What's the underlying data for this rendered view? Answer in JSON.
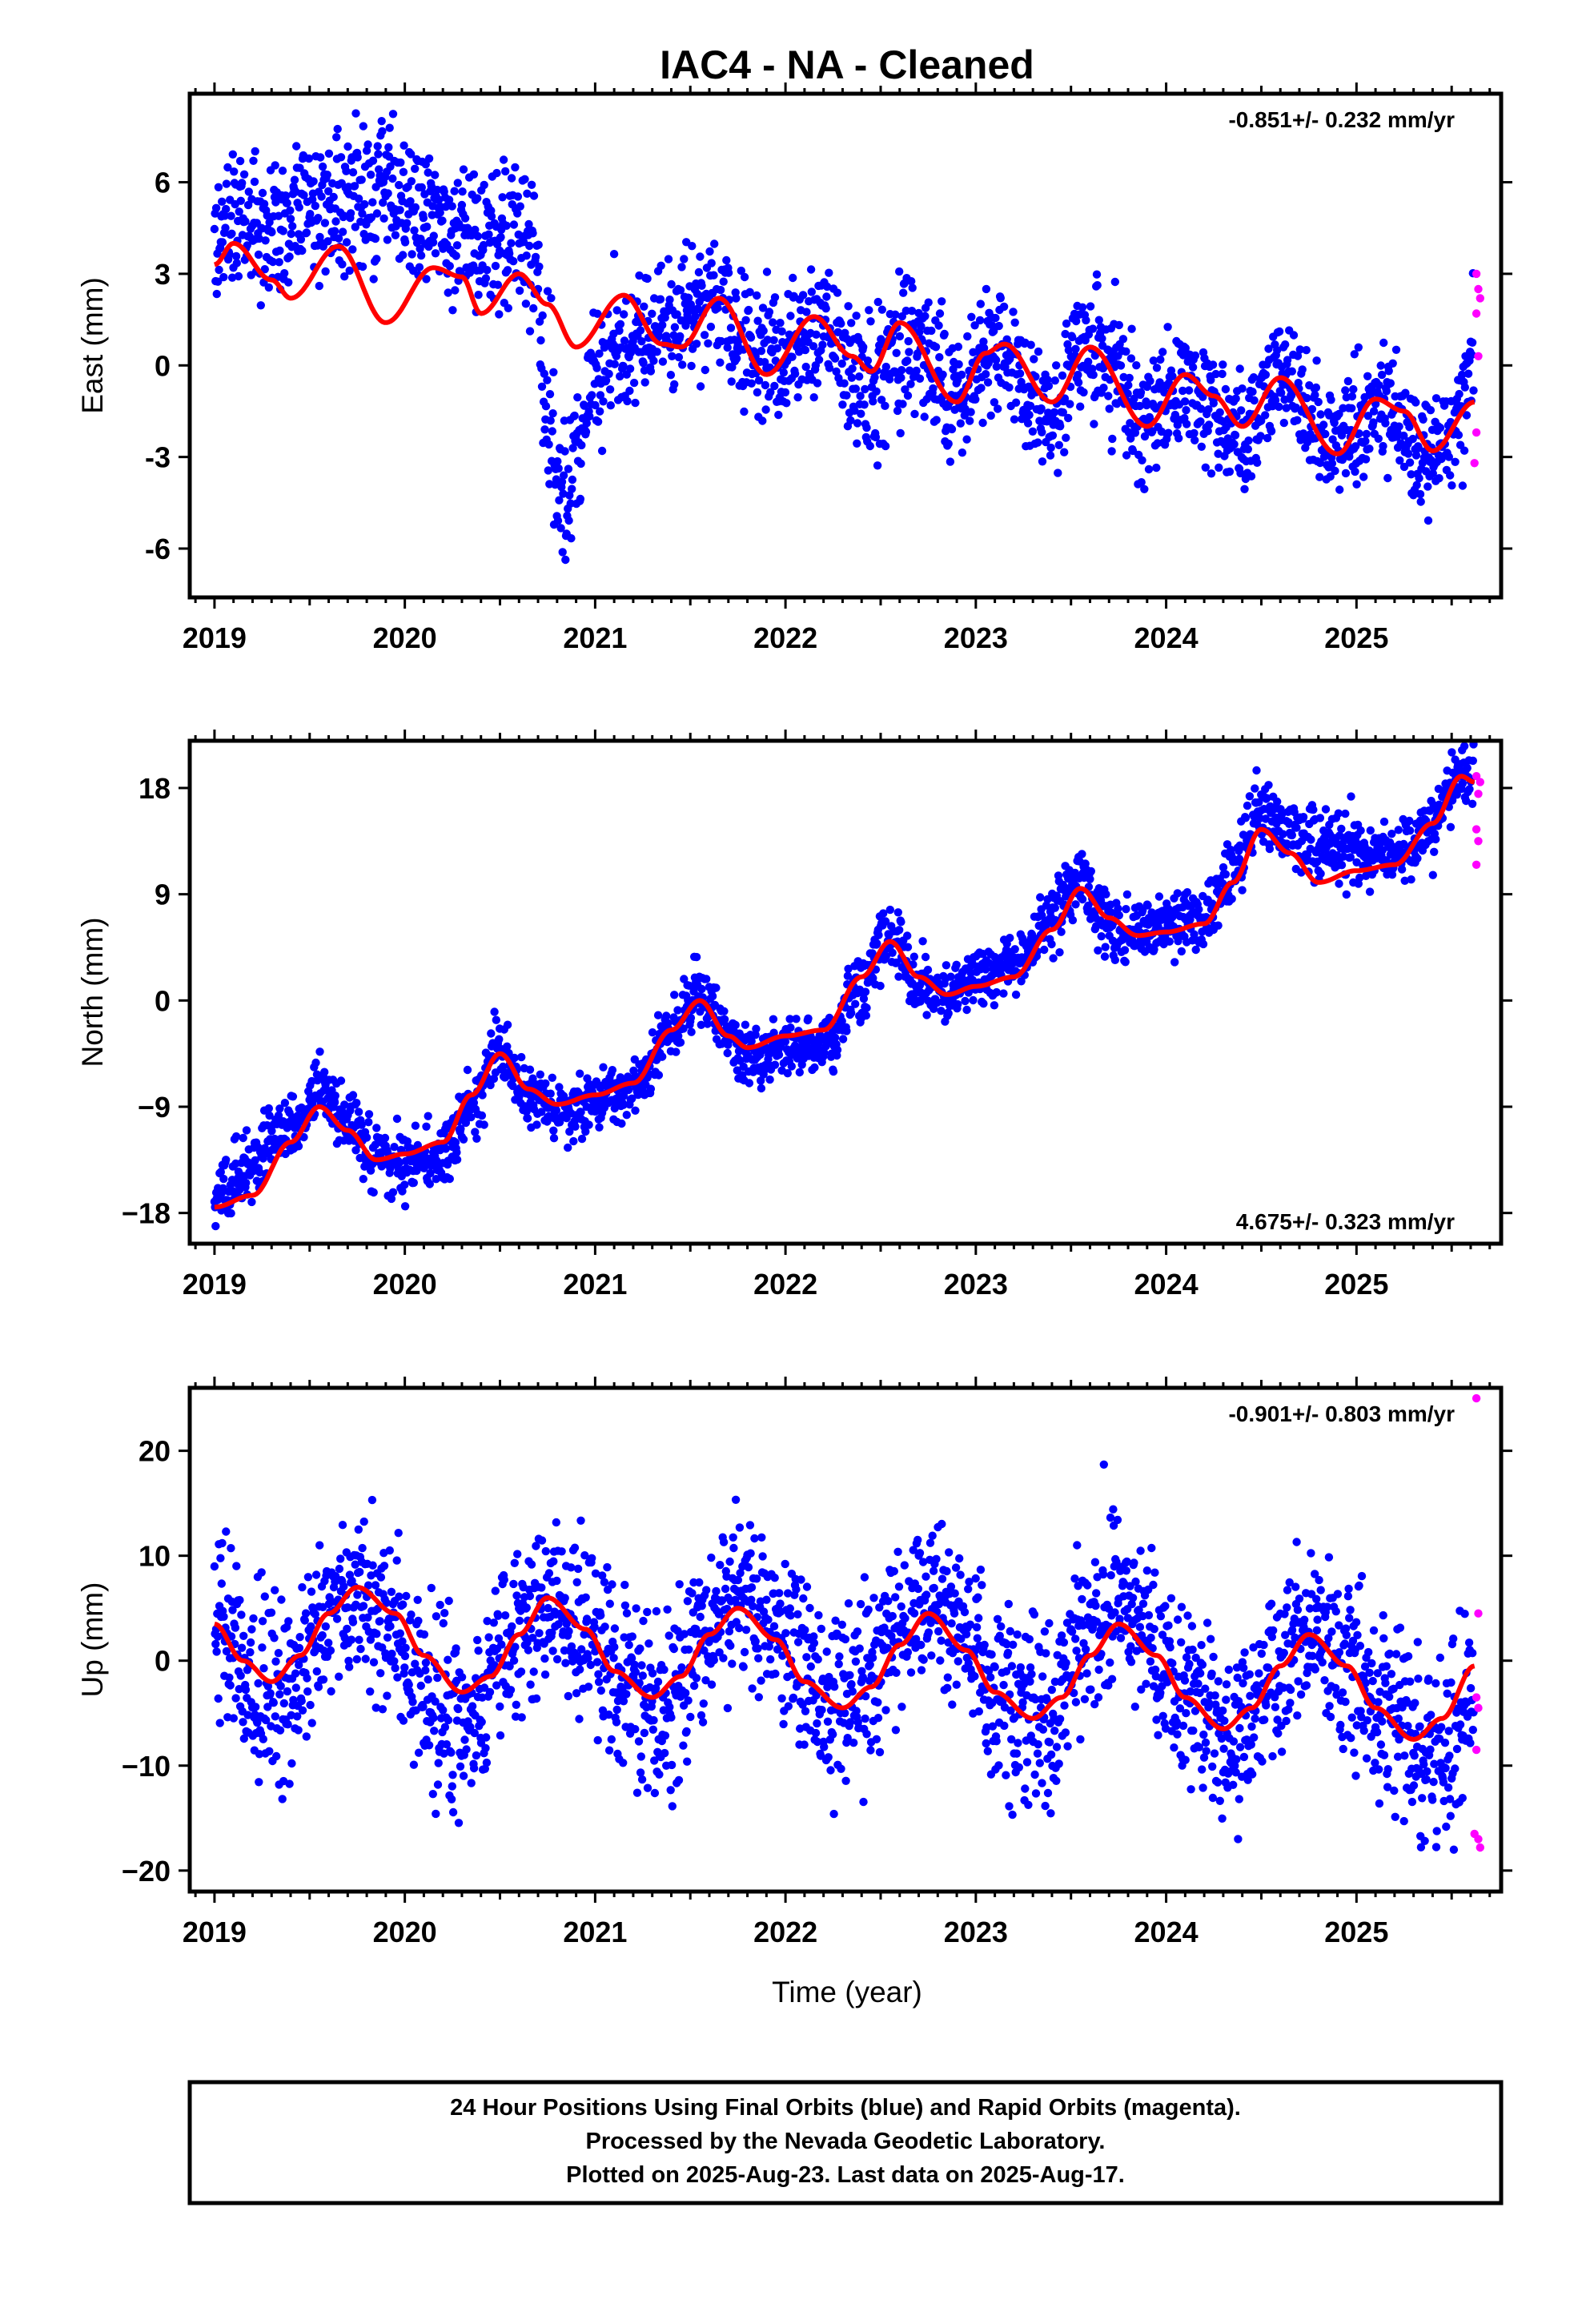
{
  "title": "IAC4  - NA - Cleaned",
  "colors": {
    "final": "#0000ff",
    "rapid": "#ff00ff",
    "model": "#ff0000",
    "frame": "#000000"
  },
  "xlabel": "Time (year)",
  "footer": {
    "line1": "24 Hour Positions Using Final Orbits (blue) and Rapid Orbits (magenta).",
    "line2": "Processed by the Nevada Geodetic Laboratory.",
    "line3": "Plotted on 2025-Aug-23. Last data on 2025-Aug-17."
  },
  "chart_data": [
    {
      "type": "scatter",
      "ylabel": "East (mm)",
      "xlim": [
        2018.87,
        2025.76
      ],
      "ylim": [
        -7.6,
        8.9
      ],
      "xticks": [
        "2019",
        "2020",
        "2021",
        "2022",
        "2023",
        "2024",
        "2025"
      ],
      "yticks": [
        "6",
        "3",
        "0",
        "-3",
        "-6"
      ],
      "rate": "-0.851+/- 0.232 mm/yr",
      "rate_position": "top-right",
      "model_anchors": [
        [
          2019.0,
          3.3
        ],
        [
          2019.1,
          4.0
        ],
        [
          2019.3,
          2.8
        ],
        [
          2019.4,
          2.2
        ],
        [
          2019.65,
          3.9
        ],
        [
          2019.9,
          1.4
        ],
        [
          2020.15,
          3.2
        ],
        [
          2020.3,
          2.9
        ],
        [
          2020.4,
          1.7
        ],
        [
          2020.6,
          3.0
        ],
        [
          2020.75,
          2.0
        ],
        [
          2020.9,
          0.6
        ],
        [
          2021.15,
          2.3
        ],
        [
          2021.35,
          0.7
        ],
        [
          2021.45,
          0.6
        ],
        [
          2021.65,
          2.2
        ],
        [
          2021.9,
          -0.3
        ],
        [
          2022.15,
          1.6
        ],
        [
          2022.35,
          0.3
        ],
        [
          2022.45,
          -0.2
        ],
        [
          2022.6,
          1.4
        ],
        [
          2022.9,
          -1.2
        ],
        [
          2023.05,
          0.4
        ],
        [
          2023.15,
          0.7
        ],
        [
          2023.4,
          -1.2
        ],
        [
          2023.6,
          0.6
        ],
        [
          2023.9,
          -2.0
        ],
        [
          2024.1,
          -0.3
        ],
        [
          2024.25,
          -1.0
        ],
        [
          2024.4,
          -2.0
        ],
        [
          2024.6,
          -0.4
        ],
        [
          2024.9,
          -2.9
        ],
        [
          2025.1,
          -1.1
        ],
        [
          2025.25,
          -1.5
        ],
        [
          2025.4,
          -2.8
        ],
        [
          2025.62,
          -1.2
        ]
      ],
      "envelope_anchors": [
        [
          2019.0,
          4.6,
          1.2
        ],
        [
          2019.5,
          5.0,
          1.2
        ],
        [
          2019.9,
          5.6,
          1.4
        ],
        [
          2020.3,
          4.2,
          1.2
        ],
        [
          2020.6,
          4.0,
          1.2
        ],
        [
          2020.68,
          3.5,
          1.2
        ],
        [
          2020.75,
          -2.0,
          1.8
        ],
        [
          2020.85,
          -4.2,
          1.5
        ],
        [
          2020.9,
          -2.0,
          1.4
        ],
        [
          2021.0,
          -0.5,
          1.1
        ],
        [
          2021.3,
          1.0,
          1.0
        ],
        [
          2021.6,
          2.2,
          1.1
        ],
        [
          2021.9,
          0.2,
          1.2
        ],
        [
          2022.2,
          1.0,
          1.1
        ],
        [
          2022.45,
          -0.6,
          1.2
        ],
        [
          2022.6,
          0.6,
          1.2
        ],
        [
          2022.9,
          -0.8,
          1.2
        ],
        [
          2023.1,
          0.5,
          1.0
        ],
        [
          2023.4,
          -1.5,
          1.1
        ],
        [
          2023.6,
          0.8,
          1.2
        ],
        [
          2023.9,
          -1.8,
          1.1
        ],
        [
          2024.1,
          -0.8,
          1.0
        ],
        [
          2024.4,
          -2.2,
          1.0
        ],
        [
          2024.6,
          -0.6,
          1.0
        ],
        [
          2024.9,
          -2.5,
          1.0
        ],
        [
          2025.1,
          -1.4,
          1.0
        ],
        [
          2025.4,
          -2.8,
          0.9
        ],
        [
          2025.55,
          -1.6,
          1.0
        ],
        [
          2025.62,
          0.5,
          1.2
        ]
      ],
      "rapid_points": [
        [
          2025.63,
          3.0
        ],
        [
          2025.64,
          2.5
        ],
        [
          2025.63,
          1.7
        ],
        [
          2025.64,
          0.3
        ],
        [
          2025.63,
          -2.2
        ],
        [
          2025.62,
          -3.2
        ],
        [
          2025.65,
          2.2
        ]
      ],
      "n_points": 2200,
      "seed": 101
    },
    {
      "type": "scatter",
      "ylabel": "North (mm)",
      "xlim": [
        2018.87,
        2025.76
      ],
      "ylim": [
        -20.6,
        22.0
      ],
      "xticks": [
        "2019",
        "2020",
        "2021",
        "2022",
        "2023",
        "2024",
        "2025"
      ],
      "yticks": [
        "18",
        "9",
        "0",
        "−9",
        "−18"
      ],
      "rate": "4.675+/- 0.323 mm/yr",
      "rate_position": "bottom-right",
      "model_anchors": [
        [
          2019.0,
          -17.5
        ],
        [
          2019.2,
          -16.5
        ],
        [
          2019.4,
          -12.0
        ],
        [
          2019.55,
          -9.0
        ],
        [
          2019.7,
          -11.0
        ],
        [
          2019.85,
          -13.5
        ],
        [
          2020.0,
          -13.0
        ],
        [
          2020.2,
          -12.0
        ],
        [
          2020.35,
          -8.0
        ],
        [
          2020.5,
          -4.5
        ],
        [
          2020.65,
          -7.5
        ],
        [
          2020.8,
          -8.8
        ],
        [
          2021.0,
          -8.0
        ],
        [
          2021.2,
          -7.0
        ],
        [
          2021.4,
          -2.5
        ],
        [
          2021.55,
          0.0
        ],
        [
          2021.7,
          -3.0
        ],
        [
          2021.8,
          -4.0
        ],
        [
          2022.0,
          -3.0
        ],
        [
          2022.2,
          -2.5
        ],
        [
          2022.4,
          2.0
        ],
        [
          2022.55,
          5.0
        ],
        [
          2022.7,
          2.0
        ],
        [
          2022.85,
          0.5
        ],
        [
          2023.0,
          1.2
        ],
        [
          2023.2,
          2.0
        ],
        [
          2023.4,
          6.0
        ],
        [
          2023.55,
          9.5
        ],
        [
          2023.7,
          7.0
        ],
        [
          2023.85,
          5.5
        ],
        [
          2024.0,
          5.8
        ],
        [
          2024.2,
          6.5
        ],
        [
          2024.35,
          10.0
        ],
        [
          2024.5,
          14.5
        ],
        [
          2024.65,
          12.5
        ],
        [
          2024.8,
          10.0
        ],
        [
          2025.0,
          11.0
        ],
        [
          2025.2,
          11.5
        ],
        [
          2025.4,
          15.0
        ],
        [
          2025.55,
          19.0
        ],
        [
          2025.62,
          18.5
        ]
      ],
      "envelope_anchors": [
        [
          2019.0,
          -16.5,
          1.5
        ],
        [
          2019.4,
          -11.0,
          1.5
        ],
        [
          2019.55,
          -7.5,
          1.5
        ],
        [
          2019.7,
          -10.0,
          1.5
        ],
        [
          2019.85,
          -13.0,
          1.5
        ],
        [
          2020.0,
          -14.0,
          1.5
        ],
        [
          2020.2,
          -13.0,
          1.5
        ],
        [
          2020.35,
          -8.5,
          1.5
        ],
        [
          2020.5,
          -4.0,
          1.5
        ],
        [
          2020.65,
          -8.0,
          1.5
        ],
        [
          2020.8,
          -9.5,
          1.3
        ],
        [
          2021.0,
          -8.5,
          1.2
        ],
        [
          2021.2,
          -7.5,
          1.2
        ],
        [
          2021.4,
          -2.5,
          1.3
        ],
        [
          2021.55,
          1.0,
          1.5
        ],
        [
          2021.7,
          -3.0,
          1.5
        ],
        [
          2021.8,
          -5.0,
          1.3
        ],
        [
          2022.0,
          -4.0,
          1.2
        ],
        [
          2022.2,
          -4.0,
          1.2
        ],
        [
          2022.4,
          1.0,
          1.5
        ],
        [
          2022.55,
          5.5,
          1.5
        ],
        [
          2022.7,
          1.5,
          1.5
        ],
        [
          2022.85,
          0.5,
          1.3
        ],
        [
          2023.0,
          2.0,
          1.2
        ],
        [
          2023.2,
          3.0,
          1.2
        ],
        [
          2023.4,
          7.0,
          1.5
        ],
        [
          2023.55,
          10.0,
          1.5
        ],
        [
          2023.7,
          6.5,
          1.5
        ],
        [
          2023.85,
          5.5,
          1.3
        ],
        [
          2024.0,
          6.5,
          1.3
        ],
        [
          2024.2,
          7.0,
          1.3
        ],
        [
          2024.35,
          11.0,
          1.5
        ],
        [
          2024.5,
          16.0,
          1.5
        ],
        [
          2024.65,
          14.5,
          1.5
        ],
        [
          2024.8,
          13.0,
          1.5
        ],
        [
          2025.0,
          12.5,
          1.3
        ],
        [
          2025.2,
          12.5,
          1.3
        ],
        [
          2025.4,
          15.0,
          1.5
        ],
        [
          2025.55,
          19.0,
          1.5
        ],
        [
          2025.62,
          19.5,
          1.5
        ]
      ],
      "rapid_points": [
        [
          2025.63,
          19.0
        ],
        [
          2025.64,
          17.5
        ],
        [
          2025.63,
          14.5
        ],
        [
          2025.64,
          13.5
        ],
        [
          2025.63,
          11.5
        ],
        [
          2025.65,
          18.5
        ]
      ],
      "n_points": 2200,
      "seed": 202
    },
    {
      "type": "scatter",
      "ylabel": "Up (mm)",
      "xlim": [
        2018.87,
        2025.76
      ],
      "ylim": [
        -22.0,
        26.0
      ],
      "xticks": [
        "2019",
        "2020",
        "2021",
        "2022",
        "2023",
        "2024",
        "2025"
      ],
      "yticks": [
        "20",
        "10",
        "0",
        "−10",
        "−20"
      ],
      "rate": "-0.901+/- 0.803 mm/yr",
      "rate_position": "top-right",
      "model_anchors": [
        [
          2019.0,
          3.5
        ],
        [
          2019.15,
          0.0
        ],
        [
          2019.3,
          -2.0
        ],
        [
          2019.45,
          0.5
        ],
        [
          2019.6,
          4.5
        ],
        [
          2019.75,
          7.0
        ],
        [
          2019.95,
          4.5
        ],
        [
          2020.1,
          0.5
        ],
        [
          2020.3,
          -3.0
        ],
        [
          2020.45,
          -1.5
        ],
        [
          2020.6,
          2.5
        ],
        [
          2020.75,
          6.0
        ],
        [
          2020.95,
          3.0
        ],
        [
          2021.1,
          -1.0
        ],
        [
          2021.3,
          -3.5
        ],
        [
          2021.45,
          -1.5
        ],
        [
          2021.6,
          2.5
        ],
        [
          2021.75,
          5.0
        ],
        [
          2021.95,
          2.0
        ],
        [
          2022.1,
          -2.0
        ],
        [
          2022.3,
          -4.5
        ],
        [
          2022.45,
          -2.5
        ],
        [
          2022.6,
          1.5
        ],
        [
          2022.75,
          4.5
        ],
        [
          2022.95,
          1.0
        ],
        [
          2023.1,
          -3.0
        ],
        [
          2023.3,
          -5.5
        ],
        [
          2023.45,
          -3.5
        ],
        [
          2023.6,
          0.5
        ],
        [
          2023.75,
          3.5
        ],
        [
          2023.95,
          0.5
        ],
        [
          2024.1,
          -3.5
        ],
        [
          2024.3,
          -6.5
        ],
        [
          2024.45,
          -4.5
        ],
        [
          2024.6,
          -0.5
        ],
        [
          2024.75,
          2.5
        ],
        [
          2024.95,
          -0.5
        ],
        [
          2025.1,
          -4.5
        ],
        [
          2025.3,
          -7.5
        ],
        [
          2025.45,
          -5.5
        ],
        [
          2025.62,
          -0.5
        ]
      ],
      "envelope_anchors": [
        [
          2019.0,
          4.0,
          4.5
        ],
        [
          2019.2,
          -2.0,
          4.5
        ],
        [
          2019.35,
          -4.0,
          4.5
        ],
        [
          2019.6,
          4.0,
          4.0
        ],
        [
          2019.75,
          6.5,
          4.0
        ],
        [
          2020.0,
          2.0,
          4.0
        ],
        [
          2020.15,
          -5.0,
          5.0
        ],
        [
          2020.35,
          -5.0,
          4.5
        ],
        [
          2020.6,
          3.0,
          4.0
        ],
        [
          2020.75,
          6.0,
          4.0
        ],
        [
          2020.95,
          3.0,
          4.0
        ],
        [
          2021.15,
          -3.0,
          4.5
        ],
        [
          2021.35,
          -4.0,
          4.5
        ],
        [
          2021.6,
          3.0,
          4.0
        ],
        [
          2021.75,
          7.0,
          4.0
        ],
        [
          2021.95,
          3.0,
          4.0
        ],
        [
          2022.15,
          -2.0,
          4.5
        ],
        [
          2022.35,
          -4.0,
          4.5
        ],
        [
          2022.6,
          3.0,
          4.0
        ],
        [
          2022.75,
          6.0,
          4.0
        ],
        [
          2022.95,
          2.0,
          4.0
        ],
        [
          2023.15,
          -5.0,
          4.5
        ],
        [
          2023.35,
          -6.0,
          4.5
        ],
        [
          2023.6,
          3.0,
          4.0
        ],
        [
          2023.75,
          6.0,
          4.0
        ],
        [
          2023.95,
          1.0,
          4.0
        ],
        [
          2024.15,
          -4.0,
          4.0
        ],
        [
          2024.35,
          -8.0,
          4.0
        ],
        [
          2024.6,
          0.0,
          4.0
        ],
        [
          2024.75,
          3.0,
          4.0
        ],
        [
          2024.95,
          -1.0,
          4.0
        ],
        [
          2025.15,
          -5.0,
          4.5
        ],
        [
          2025.35,
          -9.0,
          4.5
        ],
        [
          2025.5,
          -8.0,
          5.0
        ],
        [
          2025.62,
          -4.0,
          5.0
        ]
      ],
      "rapid_points": [
        [
          2025.63,
          25.0
        ],
        [
          2025.64,
          4.5
        ],
        [
          2025.63,
          -3.5
        ],
        [
          2025.64,
          -4.5
        ],
        [
          2025.63,
          -8.5
        ],
        [
          2025.64,
          -17.0
        ],
        [
          2025.65,
          -17.8
        ],
        [
          2025.62,
          -16.5
        ]
      ],
      "n_points": 2300,
      "seed": 303
    }
  ]
}
